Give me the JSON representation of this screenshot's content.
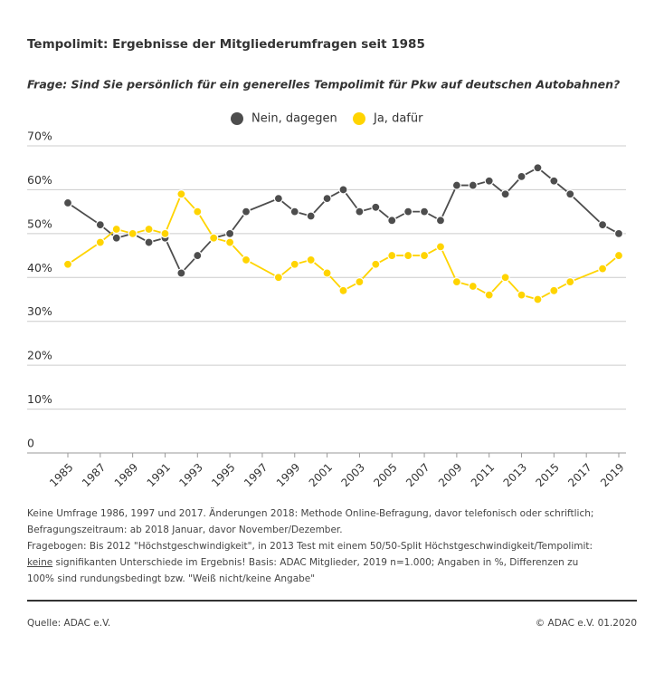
{
  "chart_data": {
    "type": "line",
    "title": "Tempolimit: Ergebnisse der Mitgliederumfragen seit 1985",
    "subtitle": "Frage: Sind Sie persönlich für ein generelles Tempolimit für Pkw auf deutschen Autobahnen?",
    "x": [
      1985,
      1987,
      1988,
      1989,
      1990,
      1991,
      1992,
      1993,
      1994,
      1995,
      1996,
      1998,
      1999,
      2000,
      2001,
      2002,
      2003,
      2004,
      2005,
      2006,
      2007,
      2008,
      2009,
      2010,
      2011,
      2012,
      2013,
      2014,
      2015,
      2016,
      2018,
      2019
    ],
    "series": [
      {
        "name": "Nein, dagegen",
        "color": "#4d4d4d",
        "values": [
          57,
          52,
          49,
          50,
          48,
          49,
          41,
          45,
          49,
          50,
          55,
          58,
          55,
          54,
          58,
          60,
          55,
          56,
          53,
          55,
          55,
          53,
          61,
          61,
          62,
          59,
          63,
          65,
          62,
          59,
          52,
          50
        ]
      },
      {
        "name": "Ja, dafür",
        "color": "#ffd400",
        "values": [
          43,
          48,
          51,
          50,
          51,
          50,
          59,
          55,
          49,
          48,
          44,
          40,
          43,
          44,
          41,
          37,
          39,
          43,
          45,
          45,
          45,
          47,
          39,
          38,
          36,
          40,
          36,
          35,
          37,
          39,
          42,
          45
        ]
      }
    ],
    "xlim": [
      1985,
      2019
    ],
    "xticks": [
      1985,
      1987,
      1989,
      1991,
      1993,
      1995,
      1997,
      1999,
      2001,
      2003,
      2005,
      2007,
      2009,
      2011,
      2013,
      2015,
      2017,
      2019
    ],
    "ylim": [
      0,
      70
    ],
    "yticks": [
      0,
      {
        "value": 10,
        "label": "10%"
      },
      {
        "value": 20,
        "label": "20%"
      },
      {
        "value": 30,
        "label": "30%"
      },
      {
        "value": 40,
        "label": "40%"
      },
      {
        "value": 50,
        "label": "50%"
      },
      {
        "value": 60,
        "label": "60%"
      },
      {
        "value": 70,
        "label": "70%"
      }
    ],
    "grid": true,
    "legend": "top",
    "notes": [
      "Keine Umfrage 1986, 1997 und 2017. Änderungen 2018: Methode Online-Befragung, davor telefonisch oder schriftlich; Befragungszeitraum: ab 2018 Januar, davor November/Dezember.",
      [
        "Fragebogen: Bis 2012 \"Höchstgeschwindigkeit\", in 2013 Test mit einem 50/50-Split Höchstgeschwindigkeit/Tempolimit: ",
        "keine",
        " signifikanten Unterschiede im Ergebnis! Basis: ADAC Mitglieder, 2019 n=1.000; Angaben in %, Differenzen zu 100% sind rundungsbedingt bzw. \"Weiß nicht/keine Angabe\""
      ]
    ],
    "source": "Quelle: ADAC e.V.",
    "copyright": "© ADAC e.V. 01.2020"
  }
}
